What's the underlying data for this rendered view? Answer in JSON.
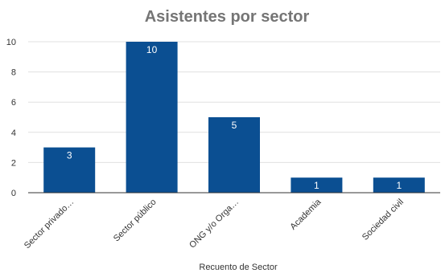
{
  "chart_data": {
    "type": "bar",
    "title": "Asistentes por  sector",
    "xlabel": "Recuento de Sector",
    "ylabel": "",
    "categories": [
      "Sector privado…",
      "Sector público",
      "ONG y/o Orga…",
      "Academia",
      "Sociedad civil"
    ],
    "values": [
      3,
      10,
      5,
      1,
      1
    ],
    "ylim": [
      0,
      10
    ],
    "yticks": [
      "0",
      "2",
      "4",
      "6",
      "8",
      "10"
    ],
    "grid": true,
    "legend": "none",
    "colors": {
      "bar": "#0b4f92",
      "data_label": "#ffffff",
      "title": "#757575",
      "text": "#333333",
      "grid": "#e0e0e0",
      "axis": "#333333"
    }
  }
}
